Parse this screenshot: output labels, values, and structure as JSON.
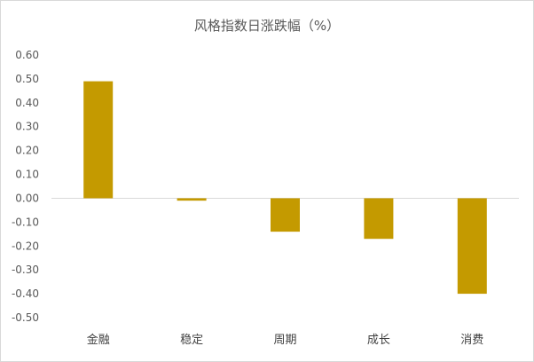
{
  "chart_data": {
    "type": "bar",
    "title": "风格指数日涨跌幅（%）",
    "categories": [
      "金融",
      "稳定",
      "周期",
      "成长",
      "消费"
    ],
    "values": [
      0.49,
      -0.01,
      -0.14,
      -0.17,
      -0.4
    ],
    "ylim": [
      -0.5,
      0.6
    ],
    "yticks": [
      "0.60",
      "0.50",
      "0.40",
      "0.30",
      "0.20",
      "0.10",
      "0.00",
      "-0.10",
      "-0.20",
      "-0.30",
      "-0.40",
      "-0.50"
    ],
    "bar_color": "#C49A00",
    "axis_color": "#d9d9d9",
    "grid": false,
    "legend": "none"
  }
}
